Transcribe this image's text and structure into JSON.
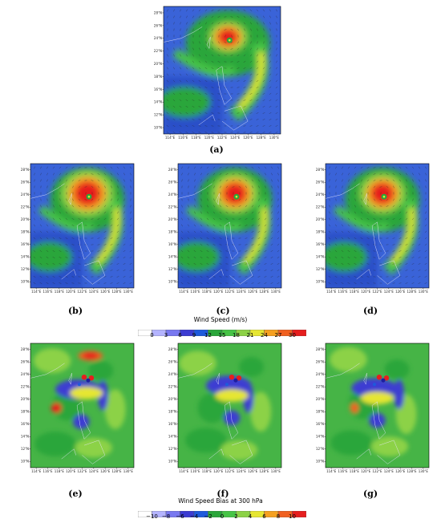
{
  "panels": [
    {
      "id": "a",
      "label": "(a)",
      "kind": "speed",
      "variant": 0
    },
    {
      "id": "b",
      "label": "(b)",
      "kind": "speed",
      "variant": 1
    },
    {
      "id": "c",
      "label": "(c)",
      "kind": "speed",
      "variant": 2
    },
    {
      "id": "d",
      "label": "(d)",
      "kind": "speed",
      "variant": 3
    },
    {
      "id": "e",
      "label": "(e)",
      "kind": "bias",
      "variant": 1
    },
    {
      "id": "f",
      "label": "(f)",
      "kind": "bias",
      "variant": 2
    },
    {
      "id": "g",
      "label": "(g)",
      "kind": "bias",
      "variant": 3
    }
  ],
  "axes": {
    "lat_ticks": [
      "28°N",
      "26°N",
      "24°N",
      "22°N",
      "20°N",
      "18°N",
      "16°N",
      "14°N",
      "12°N",
      "10°N"
    ],
    "lon_ticks": [
      "114°E",
      "116°E",
      "118°E",
      "120°E",
      "122°E",
      "124°E",
      "126°E",
      "128°E",
      "130°E"
    ]
  },
  "colorbar_speed": {
    "title": "Wind Speed  (m/s)",
    "ticks": [
      "0",
      "3",
      "6",
      "9",
      "12",
      "15",
      "18",
      "21",
      "24",
      "27",
      "30"
    ],
    "colors": [
      "#ffffff",
      "#b4b4ff",
      "#7878f0",
      "#3c3cd2",
      "#1e5adc",
      "#2aa63a",
      "#46c446",
      "#8cd246",
      "#e6e632",
      "#f5a020",
      "#f06020",
      "#e61e1e"
    ]
  },
  "colorbar_bias": {
    "title": "Wind Speed Bias at 300 hPa",
    "ticks": [
      "−10",
      "−8",
      "−6",
      "−4",
      "−2",
      "0",
      "2",
      "4",
      "6",
      "8",
      "10"
    ],
    "colors": [
      "#ffffff",
      "#b4b4ff",
      "#7878f0",
      "#3c3cd2",
      "#1e5adc",
      "#2aa63a",
      "#46c446",
      "#8cd246",
      "#e6e632",
      "#f5a020",
      "#f06020",
      "#e61e1e"
    ]
  }
}
